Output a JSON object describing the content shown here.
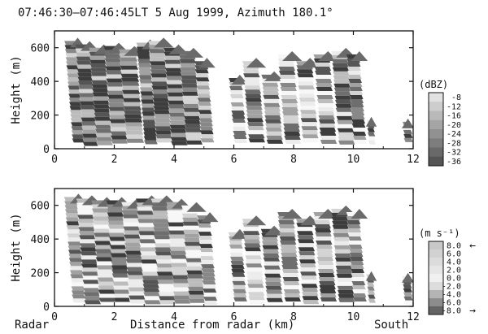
{
  "title": "07:46:30–07:46:45LT   5 Aug 1999, Azimuth 180.1°",
  "xlabel": "Distance from radar (km)",
  "xlabel_left": "Radar",
  "xlabel_right": "South",
  "colors": {
    "axis": "#111111",
    "background": "#ffffff",
    "gray_dark": "#555555",
    "gray_light": "#e6e6e6"
  },
  "chart_data": [
    {
      "type": "heatmap",
      "name": "reflectivity",
      "ylabel": "Height (m)",
      "xlim": [
        0,
        12
      ],
      "ylim": [
        0,
        700
      ],
      "xticks": [
        0,
        2,
        4,
        6,
        8,
        10,
        12
      ],
      "yticks": [
        0,
        200,
        400,
        600
      ],
      "colorbar": {
        "unit": "(dBZ)",
        "labels": [
          "-8",
          "-12",
          "-16",
          "-20",
          "-24",
          "-28",
          "-32",
          "-36"
        ]
      },
      "echo_columns": [
        {
          "x0": 0.6,
          "x1": 0.95,
          "top": 640
        },
        {
          "x0": 0.95,
          "x1": 1.4,
          "top": 620
        },
        {
          "x0": 1.4,
          "x1": 1.9,
          "top": 600
        },
        {
          "x0": 1.9,
          "x1": 2.4,
          "top": 610
        },
        {
          "x0": 2.4,
          "x1": 2.95,
          "top": 590
        },
        {
          "x0": 3.0,
          "x1": 3.4,
          "top": 630
        },
        {
          "x0": 3.4,
          "x1": 3.9,
          "top": 640
        },
        {
          "x0": 3.9,
          "x1": 4.4,
          "top": 600
        },
        {
          "x0": 4.4,
          "x1": 4.9,
          "top": 580
        },
        {
          "x0": 4.9,
          "x1": 5.3,
          "top": 520
        },
        {
          "x0": 6.0,
          "x1": 6.4,
          "top": 420
        },
        {
          "x0": 6.5,
          "x1": 7.0,
          "top": 520
        },
        {
          "x0": 7.1,
          "x1": 7.6,
          "top": 440
        },
        {
          "x0": 7.7,
          "x1": 8.2,
          "top": 560
        },
        {
          "x0": 8.3,
          "x1": 8.8,
          "top": 520
        },
        {
          "x0": 8.9,
          "x1": 9.4,
          "top": 560
        },
        {
          "x0": 9.5,
          "x1": 10.0,
          "top": 580
        },
        {
          "x0": 10.0,
          "x1": 10.4,
          "top": 560
        },
        {
          "x0": 10.5,
          "x1": 10.7,
          "top": 170
        },
        {
          "x0": 11.7,
          "x1": 11.95,
          "top": 160
        }
      ]
    },
    {
      "type": "heatmap",
      "name": "velocity",
      "ylabel": "Height (m)",
      "xlim": [
        0,
        12
      ],
      "ylim": [
        0,
        700
      ],
      "xticks": [
        0,
        2,
        4,
        6,
        8,
        10,
        12
      ],
      "yticks": [
        0,
        200,
        400,
        600
      ],
      "colorbar": {
        "unit": "(m s⁻¹)",
        "labels": [
          "8.0",
          "6.0",
          "4.0",
          "2.0",
          "0.0",
          "-2.0",
          "-4.0",
          "-6.0",
          "-8.0"
        ],
        "top_arrow": "←",
        "bottom_arrow": "→"
      },
      "echo_columns": [
        {
          "x0": 0.6,
          "x1": 1.0,
          "top": 650
        },
        {
          "x0": 1.0,
          "x1": 1.5,
          "top": 640
        },
        {
          "x0": 1.5,
          "x1": 2.0,
          "top": 630
        },
        {
          "x0": 2.0,
          "x1": 2.5,
          "top": 630
        },
        {
          "x0": 2.5,
          "x1": 3.0,
          "top": 620
        },
        {
          "x0": 3.0,
          "x1": 3.5,
          "top": 640
        },
        {
          "x0": 3.5,
          "x1": 4.0,
          "top": 640
        },
        {
          "x0": 4.0,
          "x1": 4.5,
          "top": 620
        },
        {
          "x0": 4.5,
          "x1": 5.0,
          "top": 600
        },
        {
          "x0": 5.0,
          "x1": 5.4,
          "top": 540
        },
        {
          "x0": 6.0,
          "x1": 6.4,
          "top": 440
        },
        {
          "x0": 6.5,
          "x1": 7.0,
          "top": 520
        },
        {
          "x0": 7.1,
          "x1": 7.6,
          "top": 460
        },
        {
          "x0": 7.7,
          "x1": 8.2,
          "top": 560
        },
        {
          "x0": 8.3,
          "x1": 8.8,
          "top": 520
        },
        {
          "x0": 8.9,
          "x1": 9.4,
          "top": 560
        },
        {
          "x0": 9.5,
          "x1": 10.0,
          "top": 580
        },
        {
          "x0": 10.0,
          "x1": 10.4,
          "top": 560
        },
        {
          "x0": 10.5,
          "x1": 10.7,
          "top": 190
        },
        {
          "x0": 11.7,
          "x1": 11.95,
          "top": 180
        }
      ]
    }
  ]
}
